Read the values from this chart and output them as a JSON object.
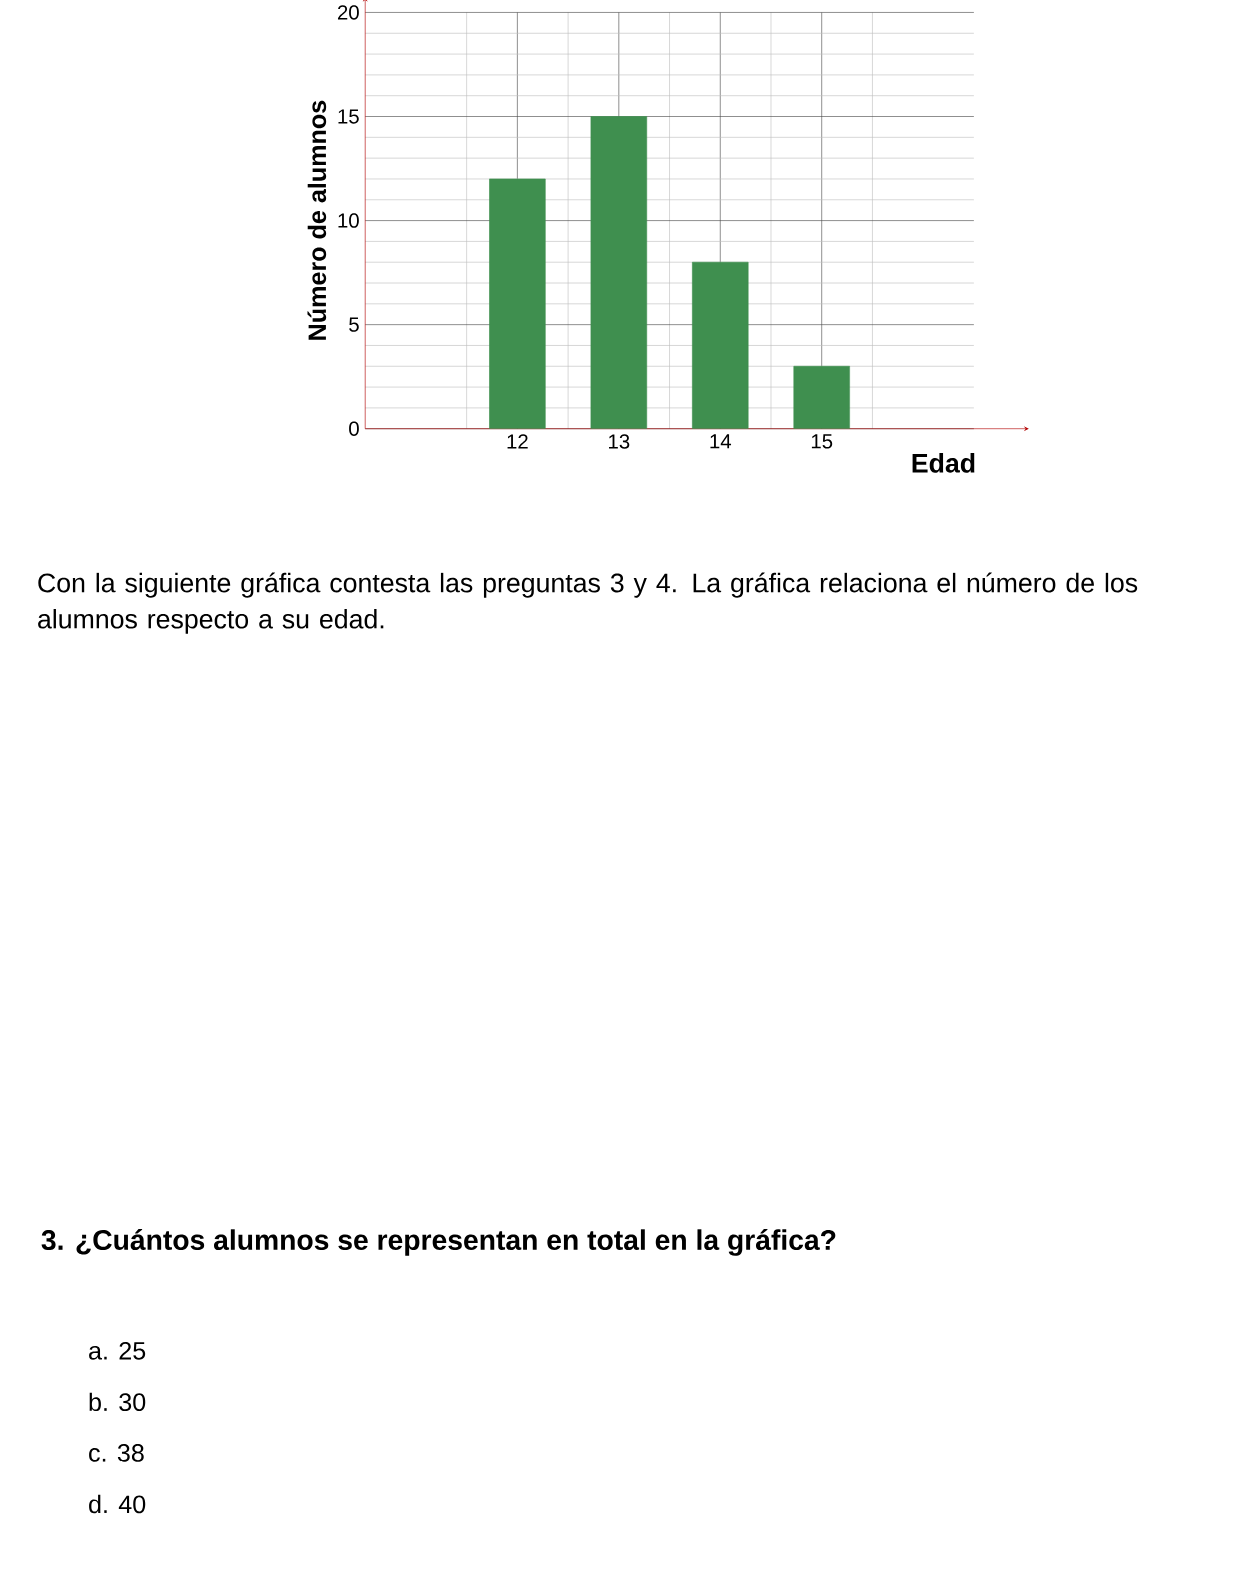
{
  "chart_data": {
    "type": "bar",
    "title": "Con la siguiente gráfica contesta las preguntas 3 y 4. La gráfica relaciona el número de los alumnos respecto a su edad.",
    "categories": [
      null,
      "12",
      "13",
      "14",
      "15",
      null
    ],
    "values": [
      null,
      12,
      15,
      8,
      3,
      null
    ],
    "color": "#3f8f4f",
    "xlabel": "Edad",
    "ylabel": "Número de alumnos",
    "ylim": [
      0,
      20
    ],
    "yticks": [
      0,
      5,
      10,
      15,
      20
    ],
    "grid": true,
    "annotations": [
      "3. ¿Cuántos alumnos se representan en total en la gráfica?",
      "a. 25",
      "b. 30",
      "c. 38",
      "d. 40"
    ]
  }
}
